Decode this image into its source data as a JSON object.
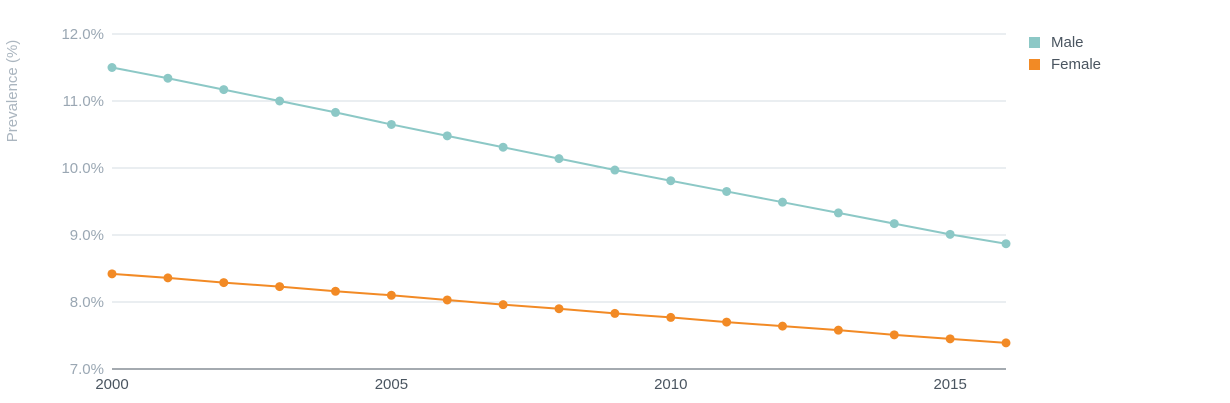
{
  "chart_data": {
    "type": "line",
    "title": "",
    "xlabel": "",
    "ylabel": "Prevalence (%)",
    "x": [
      2000,
      2001,
      2002,
      2003,
      2004,
      2005,
      2006,
      2007,
      2008,
      2009,
      2010,
      2011,
      2012,
      2013,
      2014,
      2015,
      2016
    ],
    "xlim": [
      2000,
      2016
    ],
    "ylim": [
      7.0,
      12.0
    ],
    "x_ticks": [
      2000,
      2005,
      2010,
      2015
    ],
    "x_tick_labels": [
      "2000",
      "2005",
      "2010",
      "2015"
    ],
    "y_ticks": [
      7,
      8,
      9,
      10,
      11,
      12
    ],
    "y_tick_labels": [
      "7.0%",
      "8.0%",
      "9.0%",
      "10.0%",
      "11.0%",
      "12.0%"
    ],
    "grid": true,
    "legend_placement": "top-right",
    "series": [
      {
        "name": "Male",
        "color": "#8cc8c6",
        "values": [
          11.5,
          11.34,
          11.17,
          11.0,
          10.83,
          10.65,
          10.48,
          10.31,
          10.14,
          9.97,
          9.81,
          9.65,
          9.49,
          9.33,
          9.17,
          9.01,
          8.87
        ]
      },
      {
        "name": "Female",
        "color": "#f28a25",
        "values": [
          8.42,
          8.36,
          8.29,
          8.23,
          8.16,
          8.1,
          8.03,
          7.96,
          7.9,
          7.83,
          7.77,
          7.7,
          7.64,
          7.58,
          7.51,
          7.45,
          7.39
        ]
      }
    ]
  }
}
